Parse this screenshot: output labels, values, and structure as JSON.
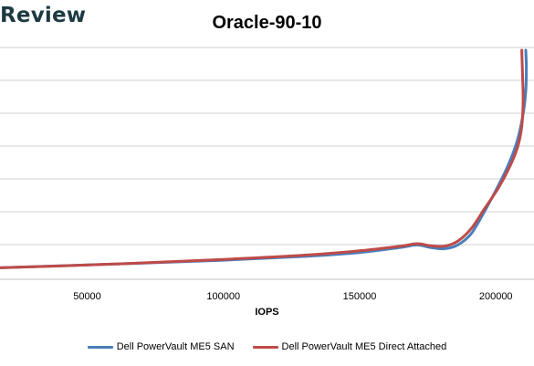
{
  "logo_text": "Review",
  "chart_data": {
    "type": "line",
    "title": "Oracle-90-10",
    "xlabel": "IOPS",
    "ylabel": "",
    "xlim": [
      18000,
      214000
    ],
    "ylim": [
      0,
      9
    ],
    "x_ticks": [
      50000,
      100000,
      150000,
      200000
    ],
    "x_tick_labels": [
      "50000",
      "100000",
      "150000",
      "200000"
    ],
    "y_tick_labels_visible": false,
    "grid": "horizontal",
    "legend_position": "bottom",
    "series": [
      {
        "name": "Dell PowerVault ME5 SAN",
        "color": "#4a7ebb",
        "points": [
          [
            18000,
            0.45
          ],
          [
            60000,
            0.6
          ],
          [
            100000,
            0.75
          ],
          [
            130000,
            0.9
          ],
          [
            150000,
            1.05
          ],
          [
            165000,
            1.25
          ],
          [
            171000,
            1.35
          ],
          [
            176000,
            1.25
          ],
          [
            181000,
            1.2
          ],
          [
            186000,
            1.35
          ],
          [
            191000,
            1.8
          ],
          [
            196000,
            2.7
          ],
          [
            201000,
            3.7
          ],
          [
            205000,
            4.6
          ],
          [
            208000,
            5.5
          ],
          [
            210000,
            6.5
          ],
          [
            211000,
            7.4
          ],
          [
            211200,
            8.3
          ],
          [
            211000,
            9.0
          ]
        ]
      },
      {
        "name": "Dell PowerVault ME5 Direct Attached",
        "color": "#be4b48",
        "points": [
          [
            18000,
            0.45
          ],
          [
            60000,
            0.6
          ],
          [
            100000,
            0.78
          ],
          [
            130000,
            0.95
          ],
          [
            150000,
            1.12
          ],
          [
            165000,
            1.3
          ],
          [
            171000,
            1.4
          ],
          [
            176000,
            1.32
          ],
          [
            181000,
            1.3
          ],
          [
            186000,
            1.5
          ],
          [
            191000,
            2.0
          ],
          [
            196000,
            2.8
          ],
          [
            201000,
            3.6
          ],
          [
            205000,
            4.4
          ],
          [
            208000,
            5.2
          ],
          [
            209500,
            6.0
          ],
          [
            210000,
            7.0
          ],
          [
            209800,
            8.0
          ],
          [
            209500,
            9.0
          ]
        ]
      }
    ]
  }
}
